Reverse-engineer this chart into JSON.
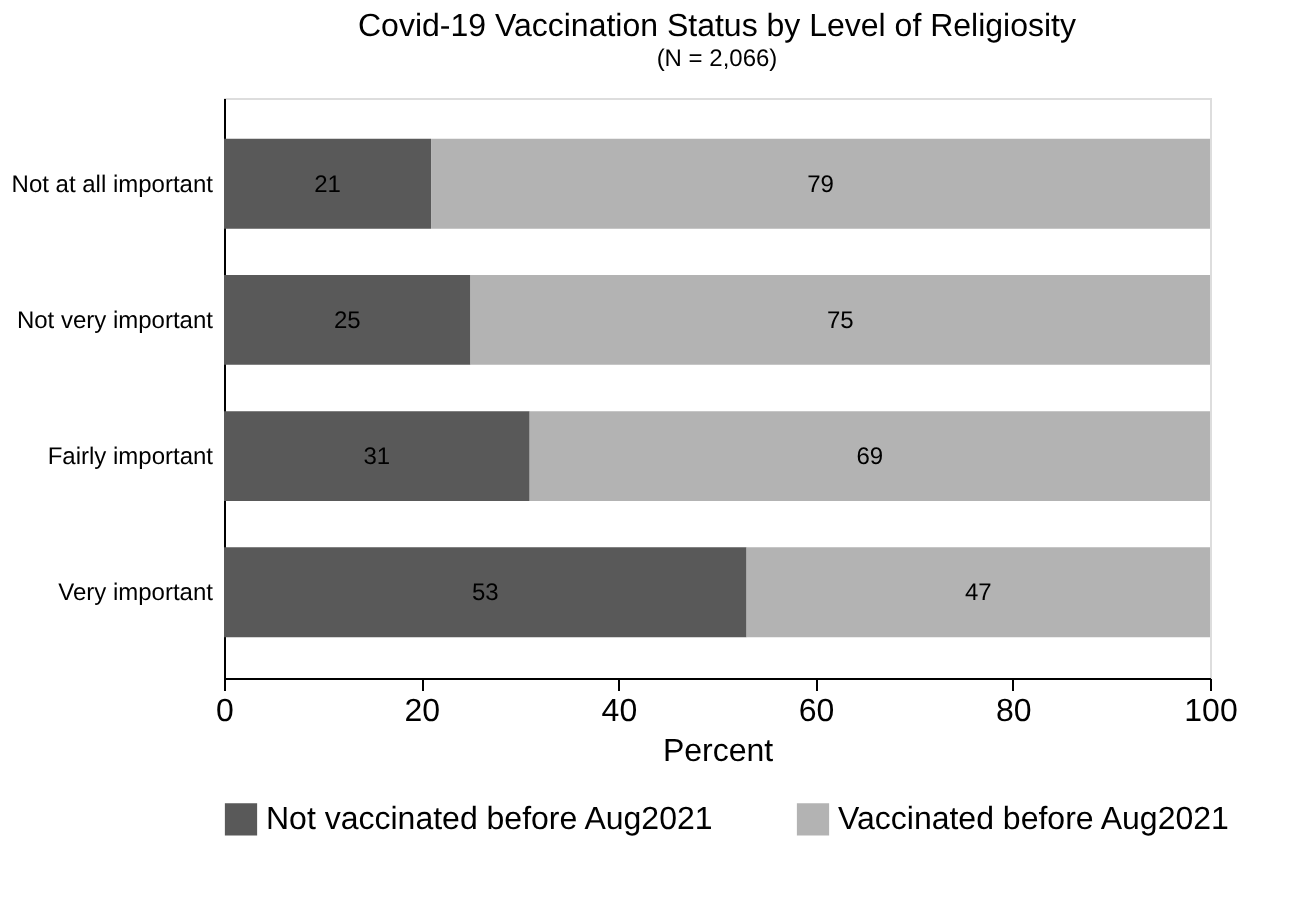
{
  "chart_data": {
    "type": "bar",
    "orientation": "horizontal",
    "stacked": true,
    "title": "Covid-19 Vaccination Status by Level of Religiosity",
    "subtitle": "(N = 2,066)",
    "xlabel": "Percent",
    "categories": [
      "Not at all important",
      "Not very important",
      "Fairly important",
      "Very important"
    ],
    "series": [
      {
        "name": "Not vaccinated before Aug2021",
        "color": "#595959",
        "values": [
          21,
          25,
          31,
          53
        ]
      },
      {
        "name": "Vaccinated before Aug2021",
        "color": "#b3b3b3",
        "values": [
          79,
          75,
          69,
          47
        ]
      }
    ],
    "xlim": [
      0,
      100
    ],
    "xticks": [
      0,
      20,
      40,
      60,
      80,
      100
    ],
    "grid": false,
    "legend": "bottom",
    "data_labels": true
  }
}
